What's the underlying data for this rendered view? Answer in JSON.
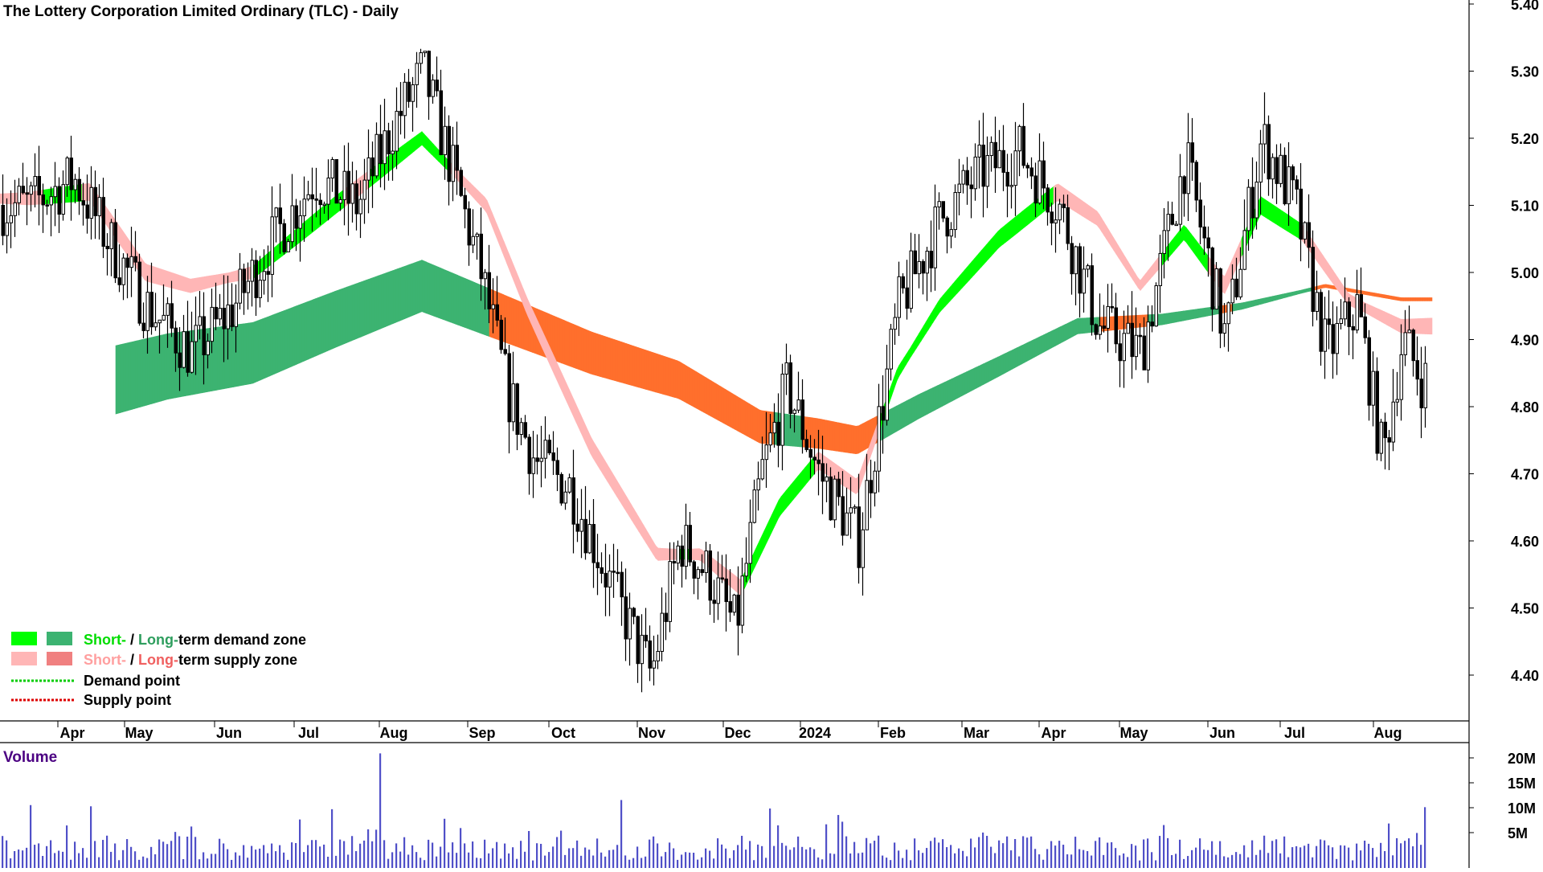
{
  "title": "The Lottery Corporation Limited Ordinary (TLC) - Daily",
  "colors": {
    "short_demand": "#00ff00",
    "long_demand": "#3cb371",
    "short_supply": "#ffb6b6",
    "long_supply": "#ff6f2c",
    "demand_point": "#00cc00",
    "supply_point": "#dd0000",
    "candle": "#000000",
    "volume_bar": "#5050c8",
    "volume_label": "#4b0082"
  },
  "legend": {
    "row1": {
      "short": "Short-",
      "sep": " / ",
      "long": "Long-",
      "rest": "term demand zone"
    },
    "row2": {
      "short": "Short-",
      "sep": " / ",
      "long": "Long-",
      "rest": "term supply zone"
    },
    "row3": "Demand point",
    "row4": "Supply point"
  },
  "volume_label": "Volume",
  "chart_data": {
    "type": "candlestick",
    "title": "The Lottery Corporation Limited Ordinary (TLC) - Daily",
    "price_axis": {
      "ticks": [
        "5.40",
        "5.30",
        "5.20",
        "5.10",
        "5.00",
        "4.90",
        "4.80",
        "4.70",
        "4.60",
        "4.50",
        "4.40"
      ],
      "range": [
        4.33,
        5.4
      ]
    },
    "volume_axis": {
      "ticks": [
        "20M",
        "15M",
        "10M",
        "5M"
      ],
      "range": [
        0,
        24000000
      ]
    },
    "x_months": [
      "Apr",
      "May",
      "Jun",
      "Jul",
      "Aug",
      "Sep",
      "Oct",
      "Nov",
      "Dec",
      "2024",
      "Feb",
      "Mar",
      "Apr",
      "May",
      "Jun",
      "Jul",
      "Aug"
    ],
    "close_path": [
      [
        "Mar",
        5.1
      ],
      [
        "Apr",
        5.14
      ],
      [
        "Apr",
        5.05
      ],
      [
        "May",
        4.95
      ],
      [
        "May",
        4.88
      ],
      [
        "Jun",
        4.95
      ],
      [
        "Jun",
        5.05
      ],
      [
        "Jul",
        5.14
      ],
      [
        "Jul",
        5.1
      ],
      [
        "Aug",
        5.22
      ],
      [
        "Aug",
        5.3
      ],
      [
        "Aug",
        5.15
      ],
      [
        "Sep",
        5.0
      ],
      [
        "Sep",
        4.82
      ],
      [
        "Sep",
        4.72
      ],
      [
        "Oct",
        4.68
      ],
      [
        "Oct",
        4.52
      ],
      [
        "Nov",
        4.4
      ],
      [
        "Nov",
        4.6
      ],
      [
        "Nov",
        4.55
      ],
      [
        "Dec",
        4.47
      ],
      [
        "Dec",
        4.7
      ],
      [
        "Dec",
        4.83
      ],
      [
        "2024",
        4.7
      ],
      [
        "2024",
        4.6
      ],
      [
        "Feb",
        4.95
      ],
      [
        "Feb",
        5.08
      ],
      [
        "Mar",
        5.15
      ],
      [
        "Mar",
        5.18
      ],
      [
        "Apr",
        5.1
      ],
      [
        "Apr",
        4.92
      ],
      [
        "May",
        4.88
      ],
      [
        "May",
        5.17
      ],
      [
        "Jun",
        4.9
      ],
      [
        "Jun",
        5.2
      ],
      [
        "Jul",
        5.1
      ],
      [
        "Jul",
        4.88
      ],
      [
        "Jul",
        4.95
      ],
      [
        "Aug",
        4.72
      ],
      [
        "Aug",
        4.9
      ],
      [
        "Aug",
        4.84
      ]
    ],
    "zones": {
      "short_term_ema": [
        [
          "Mar",
          5.11
        ],
        [
          "Apr",
          5.12
        ],
        [
          "May",
          5.0
        ],
        [
          "May",
          4.98
        ],
        [
          "Jun",
          5.0
        ],
        [
          "Jul",
          5.1
        ],
        [
          "Aug",
          5.2
        ],
        [
          "Sep",
          5.1
        ],
        [
          "Sep",
          4.95
        ],
        [
          "Oct",
          4.74
        ],
        [
          "Nov",
          4.58
        ],
        [
          "Nov",
          4.58
        ],
        [
          "Dec",
          4.53
        ],
        [
          "Dec",
          4.65
        ],
        [
          "2024",
          4.72
        ],
        [
          "2024",
          4.68
        ],
        [
          "Feb",
          4.85
        ],
        [
          "Feb",
          4.95
        ],
        [
          "Mar",
          5.05
        ],
        [
          "Apr",
          5.12
        ],
        [
          "Apr",
          5.08
        ],
        [
          "May",
          4.98
        ],
        [
          "May",
          5.06
        ],
        [
          "Jun",
          4.98
        ],
        [
          "Jun",
          5.1
        ],
        [
          "Jul",
          5.06
        ],
        [
          "Jul",
          4.96
        ],
        [
          "Aug",
          4.92
        ]
      ],
      "long_term_ema": [
        [
          "Apr",
          4.83
        ],
        [
          "May",
          4.86
        ],
        [
          "Jun",
          4.88
        ],
        [
          "Jul",
          4.93
        ],
        [
          "Aug",
          4.98
        ],
        [
          "Sep",
          4.93
        ],
        [
          "Oct",
          4.88
        ],
        [
          "Nov",
          4.84
        ],
        [
          "Dec",
          4.77
        ],
        [
          "2024",
          4.76
        ],
        [
          "2024",
          4.75
        ],
        [
          "Feb",
          4.8
        ],
        [
          "Mar",
          4.86
        ],
        [
          "Apr",
          4.92
        ],
        [
          "May",
          4.93
        ],
        [
          "Jun",
          4.95
        ],
        [
          "Jul",
          4.98
        ],
        [
          "Aug",
          4.96
        ]
      ]
    },
    "volume_peak": "23M (Aug)",
    "xlabel": "",
    "ylabel": ""
  }
}
